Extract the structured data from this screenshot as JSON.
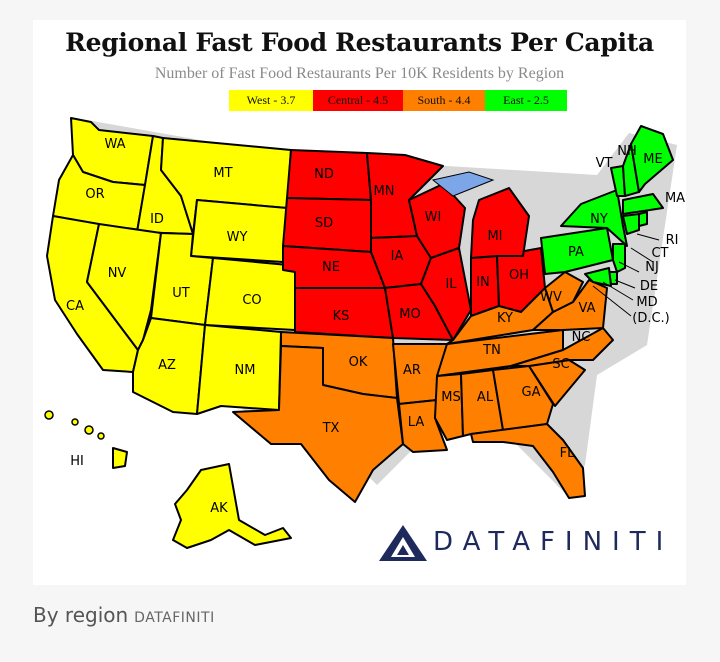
{
  "title": "Regional Fast Food Restaurants Per Capita",
  "subtitle": "Number of Fast Food Restaurants Per 10K Residents by Region",
  "legend": [
    {
      "label": "West - 3.7",
      "color": "#ffff00"
    },
    {
      "label": "Central - 4.5",
      "color": "#ff0000"
    },
    {
      "label": "South - 4.4",
      "color": "#ff8000"
    },
    {
      "label": "East - 2.5",
      "color": "#00ff00"
    }
  ],
  "regions": {
    "west": {
      "value": 3.7,
      "color": "#ffff00",
      "states": [
        "WA",
        "OR",
        "CA",
        "ID",
        "NV",
        "MT",
        "WY",
        "UT",
        "AZ",
        "CO",
        "NM",
        "AK",
        "HI"
      ]
    },
    "central": {
      "value": 4.5,
      "color": "#ff0000",
      "states": [
        "ND",
        "SD",
        "NE",
        "KS",
        "MN",
        "IA",
        "MO",
        "WI",
        "IL",
        "MI",
        "IN",
        "OH"
      ]
    },
    "south": {
      "value": 4.4,
      "color": "#ff8000",
      "states": [
        "OK",
        "TX",
        "AR",
        "LA",
        "MS",
        "AL",
        "TN",
        "KY",
        "GA",
        "FL",
        "SC",
        "NC",
        "VA",
        "WV"
      ]
    },
    "east": {
      "value": 2.5,
      "color": "#00ff00",
      "states": [
        "PA",
        "NY",
        "VT",
        "NH",
        "ME",
        "MA",
        "RI",
        "CT",
        "NJ",
        "DE",
        "MD",
        "(D.C.)"
      ]
    }
  },
  "state_labels": {
    "WA": "WA",
    "OR": "OR",
    "CA": "CA",
    "ID": "ID",
    "NV": "NV",
    "MT": "MT",
    "WY": "WY",
    "UT": "UT",
    "AZ": "AZ",
    "CO": "CO",
    "NM": "NM",
    "AK": "AK",
    "HI": "HI",
    "ND": "ND",
    "SD": "SD",
    "NE": "NE",
    "KS": "KS",
    "MN": "MN",
    "IA": "IA",
    "MO": "MO",
    "WI": "WI",
    "IL": "IL",
    "MI": "MI",
    "IN": "IN",
    "OH": "OH",
    "OK": "OK",
    "TX": "TX",
    "AR": "AR",
    "LA": "LA",
    "MS": "MS",
    "AL": "AL",
    "TN": "TN",
    "KY": "KY",
    "GA": "GA",
    "FL": "FL",
    "SC": "SC",
    "NC": "NC",
    "VA": "VA",
    "WV": "WV",
    "PA": "PA",
    "NY": "NY",
    "VT": "VT",
    "NH": "NH",
    "ME": "ME",
    "MA": "MA",
    "RI": "RI",
    "CT": "CT",
    "NJ": "NJ",
    "DE": "DE",
    "MD": "MD",
    "DC": "(D.C.)"
  },
  "logo": {
    "text": "DATAFINITI",
    "color": "#1f2a5c"
  },
  "caption": {
    "text": "By region",
    "credit": "DATAFINITI"
  }
}
